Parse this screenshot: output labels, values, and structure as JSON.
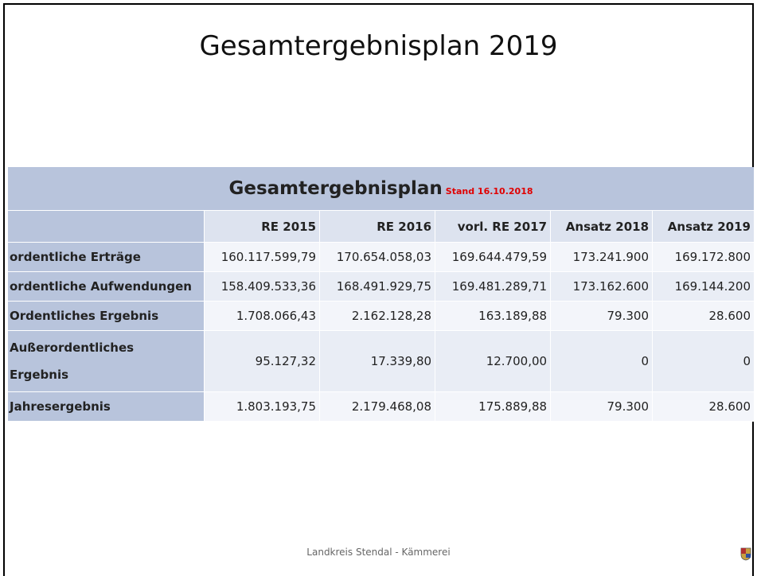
{
  "header": {
    "title": "Gesamtergebnisplan 2019"
  },
  "table": {
    "title": "Gesamtergebnisplan",
    "stand": "Stand 16.10.2018",
    "columns": [
      "RE 2015",
      "RE 2016",
      "vorl. RE 2017",
      "Ansatz 2018",
      "Ansatz 2019"
    ],
    "rows": [
      {
        "label": "ordentliche Erträge",
        "values": [
          "160.117.599,79",
          "170.654.058,03",
          "169.644.479,59",
          "173.241.900",
          "169.172.800"
        ]
      },
      {
        "label": "ordentliche Aufwendungen",
        "values": [
          "158.409.533,36",
          "168.491.929,75",
          "169.481.289,71",
          "173.162.600",
          "169.144.200"
        ]
      },
      {
        "label": "Ordentliches Ergebnis",
        "values": [
          "1.708.066,43",
          "2.162.128,28",
          "163.189,88",
          "79.300",
          "28.600"
        ]
      },
      {
        "label": "Außerordentliches Ergebnis",
        "values": [
          "95.127,32",
          "17.339,80",
          "12.700,00",
          "0",
          "0"
        ]
      },
      {
        "label": "Jahresergebnis",
        "values": [
          "1.803.193,75",
          "2.179.468,08",
          "175.889,88",
          "79.300",
          "28.600"
        ]
      }
    ]
  },
  "footer": {
    "text": "Landkreis Stendal - Kämmerei"
  }
}
